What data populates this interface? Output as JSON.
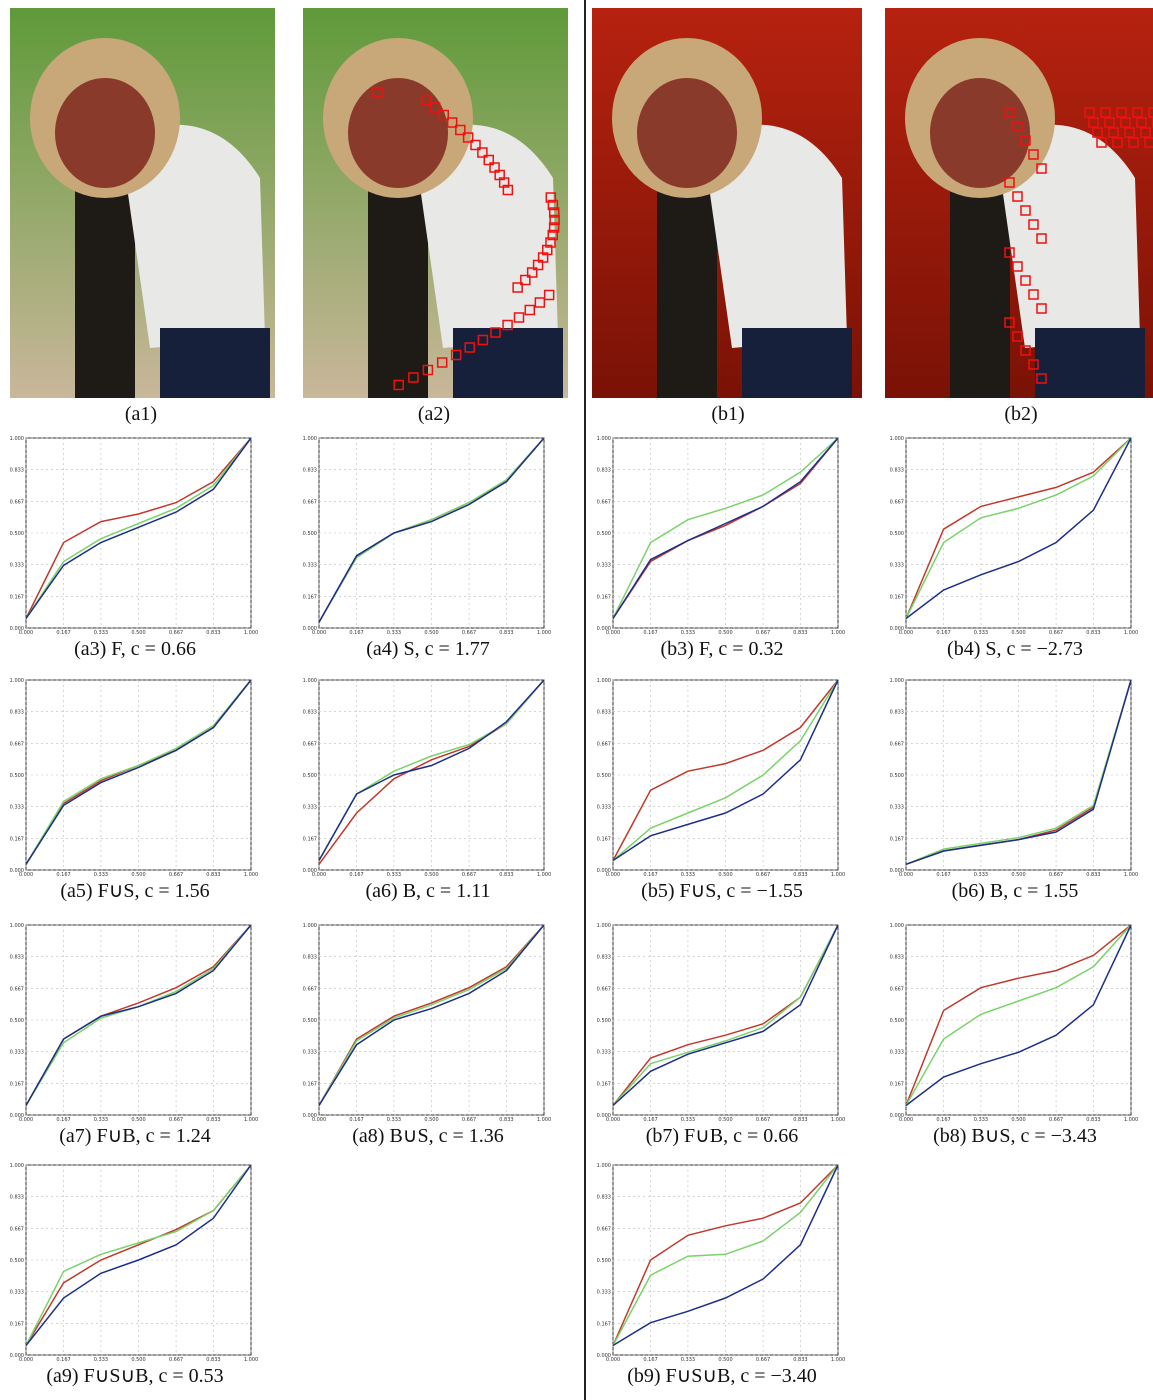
{
  "photos": [
    {
      "caption": "(a1)"
    },
    {
      "caption": "(a2)"
    },
    {
      "caption": "(b1)"
    },
    {
      "caption": "(b2)"
    }
  ],
  "ticks": [
    {
      "value": 0,
      "label": "0.000"
    },
    {
      "value": 0.167,
      "label": "0.167"
    },
    {
      "value": 0.333,
      "label": "0.333"
    },
    {
      "value": 0.5,
      "label": "0.500"
    },
    {
      "value": 0.667,
      "label": "0.667"
    },
    {
      "value": 0.833,
      "label": "0.833"
    },
    {
      "value": 1,
      "label": "1.000"
    }
  ],
  "plots": [
    {
      "caption": "(a3) F, c = 0.66",
      "series": [
        {
          "color": "#c0392b",
          "values": [
            0.05,
            0.45,
            0.56,
            0.6,
            0.66,
            0.77,
            1
          ]
        },
        {
          "color": "#7ad36a",
          "values": [
            0.05,
            0.35,
            0.47,
            0.55,
            0.63,
            0.75,
            1
          ]
        },
        {
          "color": "#1c2f8a",
          "values": [
            0.05,
            0.33,
            0.45,
            0.53,
            0.61,
            0.73,
            1
          ]
        }
      ]
    },
    {
      "caption": "(a4) S, c = 1.77",
      "series": [
        {
          "color": "#c0392b",
          "values": [
            0.03,
            0.38,
            0.5,
            0.57,
            0.66,
            0.77,
            1
          ]
        },
        {
          "color": "#7ad36a",
          "values": [
            0.03,
            0.37,
            0.5,
            0.57,
            0.66,
            0.78,
            1
          ]
        },
        {
          "color": "#1c2f8a",
          "values": [
            0.03,
            0.38,
            0.5,
            0.56,
            0.65,
            0.77,
            1
          ]
        }
      ]
    },
    {
      "caption": "(b3) F, c = 0.32",
      "series": [
        {
          "color": "#c0392b",
          "values": [
            0.05,
            0.35,
            0.46,
            0.54,
            0.64,
            0.76,
            1
          ]
        },
        {
          "color": "#7ad36a",
          "values": [
            0.05,
            0.45,
            0.57,
            0.63,
            0.7,
            0.82,
            1
          ]
        },
        {
          "color": "#1c2f8a",
          "values": [
            0.05,
            0.36,
            0.46,
            0.55,
            0.64,
            0.77,
            1
          ]
        }
      ]
    },
    {
      "caption": "(b4) S, c = −2.73",
      "series": [
        {
          "color": "#c0392b",
          "values": [
            0.05,
            0.52,
            0.64,
            0.69,
            0.74,
            0.82,
            1
          ]
        },
        {
          "color": "#7ad36a",
          "values": [
            0.05,
            0.45,
            0.58,
            0.63,
            0.7,
            0.8,
            1
          ]
        },
        {
          "color": "#1c2f8a",
          "values": [
            0.05,
            0.2,
            0.28,
            0.35,
            0.45,
            0.62,
            1
          ]
        }
      ]
    },
    {
      "caption": "(a5) F∪S, c = 1.56",
      "series": [
        {
          "color": "#c0392b",
          "values": [
            0.03,
            0.35,
            0.47,
            0.55,
            0.63,
            0.75,
            1
          ]
        },
        {
          "color": "#7ad36a",
          "values": [
            0.03,
            0.36,
            0.48,
            0.55,
            0.64,
            0.76,
            1
          ]
        },
        {
          "color": "#1c2f8a",
          "values": [
            0.03,
            0.34,
            0.46,
            0.54,
            0.63,
            0.75,
            1
          ]
        }
      ]
    },
    {
      "caption": "(a6) B, c = 1.11",
      "series": [
        {
          "color": "#c0392b",
          "values": [
            0.03,
            0.3,
            0.48,
            0.58,
            0.65,
            0.77,
            1
          ]
        },
        {
          "color": "#7ad36a",
          "values": [
            0.05,
            0.4,
            0.52,
            0.6,
            0.66,
            0.77,
            1
          ]
        },
        {
          "color": "#1c2f8a",
          "values": [
            0.05,
            0.4,
            0.5,
            0.55,
            0.64,
            0.78,
            1
          ]
        }
      ]
    },
    {
      "caption": "(b5) F∪S, c = −1.55",
      "series": [
        {
          "color": "#c0392b",
          "values": [
            0.05,
            0.42,
            0.52,
            0.56,
            0.63,
            0.75,
            1
          ]
        },
        {
          "color": "#7ad36a",
          "values": [
            0.05,
            0.22,
            0.3,
            0.38,
            0.5,
            0.68,
            1
          ]
        },
        {
          "color": "#1c2f8a",
          "values": [
            0.05,
            0.18,
            0.24,
            0.3,
            0.4,
            0.58,
            1
          ]
        }
      ]
    },
    {
      "caption": "(b6) B, c = 1.55",
      "series": [
        {
          "color": "#c0392b",
          "values": [
            0.03,
            0.1,
            0.13,
            0.16,
            0.21,
            0.33,
            1
          ]
        },
        {
          "color": "#7ad36a",
          "values": [
            0.03,
            0.11,
            0.14,
            0.17,
            0.22,
            0.34,
            1
          ]
        },
        {
          "color": "#1c2f8a",
          "values": [
            0.03,
            0.1,
            0.13,
            0.16,
            0.2,
            0.32,
            1
          ]
        }
      ]
    },
    {
      "caption": "(a7) F∪B, c = 1.24",
      "series": [
        {
          "color": "#c0392b",
          "values": [
            0.05,
            0.4,
            0.52,
            0.59,
            0.67,
            0.78,
            1
          ]
        },
        {
          "color": "#7ad36a",
          "values": [
            0.05,
            0.38,
            0.51,
            0.57,
            0.65,
            0.77,
            1
          ]
        },
        {
          "color": "#1c2f8a",
          "values": [
            0.05,
            0.4,
            0.52,
            0.57,
            0.64,
            0.76,
            1
          ]
        }
      ]
    },
    {
      "caption": "(a8) B∪S, c = 1.36",
      "series": [
        {
          "color": "#c0392b",
          "values": [
            0.05,
            0.4,
            0.52,
            0.59,
            0.67,
            0.78,
            1
          ]
        },
        {
          "color": "#7ad36a",
          "values": [
            0.05,
            0.39,
            0.51,
            0.58,
            0.66,
            0.77,
            1
          ]
        },
        {
          "color": "#1c2f8a",
          "values": [
            0.05,
            0.37,
            0.5,
            0.56,
            0.64,
            0.76,
            1
          ]
        }
      ]
    },
    {
      "caption": "(b7) F∪B, c = 0.66",
      "series": [
        {
          "color": "#c0392b",
          "values": [
            0.05,
            0.3,
            0.37,
            0.42,
            0.48,
            0.62,
            1
          ]
        },
        {
          "color": "#7ad36a",
          "values": [
            0.05,
            0.27,
            0.33,
            0.39,
            0.46,
            0.62,
            1
          ]
        },
        {
          "color": "#1c2f8a",
          "values": [
            0.05,
            0.23,
            0.32,
            0.38,
            0.44,
            0.58,
            1
          ]
        }
      ]
    },
    {
      "caption": "(b8) B∪S, c = −3.43",
      "series": [
        {
          "color": "#c0392b",
          "values": [
            0.05,
            0.55,
            0.67,
            0.72,
            0.76,
            0.84,
            1
          ]
        },
        {
          "color": "#7ad36a",
          "values": [
            0.05,
            0.4,
            0.53,
            0.6,
            0.67,
            0.78,
            1
          ]
        },
        {
          "color": "#1c2f8a",
          "values": [
            0.05,
            0.2,
            0.27,
            0.33,
            0.42,
            0.58,
            1
          ]
        }
      ]
    },
    {
      "caption": "(a9) F∪S∪B, c = 0.53",
      "series": [
        {
          "color": "#c0392b",
          "values": [
            0.05,
            0.38,
            0.5,
            0.58,
            0.66,
            0.76,
            1
          ]
        },
        {
          "color": "#7ad36a",
          "values": [
            0.05,
            0.44,
            0.53,
            0.59,
            0.65,
            0.76,
            1
          ]
        },
        {
          "color": "#1c2f8a",
          "values": [
            0.05,
            0.3,
            0.43,
            0.5,
            0.58,
            0.72,
            1
          ]
        }
      ]
    },
    {
      "caption": "(b9) F∪S∪B, c = −3.40",
      "series": [
        {
          "color": "#c0392b",
          "values": [
            0.05,
            0.5,
            0.63,
            0.68,
            0.72,
            0.8,
            1
          ]
        },
        {
          "color": "#7ad36a",
          "values": [
            0.05,
            0.42,
            0.52,
            0.53,
            0.6,
            0.75,
            1
          ]
        },
        {
          "color": "#1c2f8a",
          "values": [
            0.05,
            0.17,
            0.23,
            0.3,
            0.4,
            0.58,
            1
          ]
        }
      ]
    }
  ]
}
